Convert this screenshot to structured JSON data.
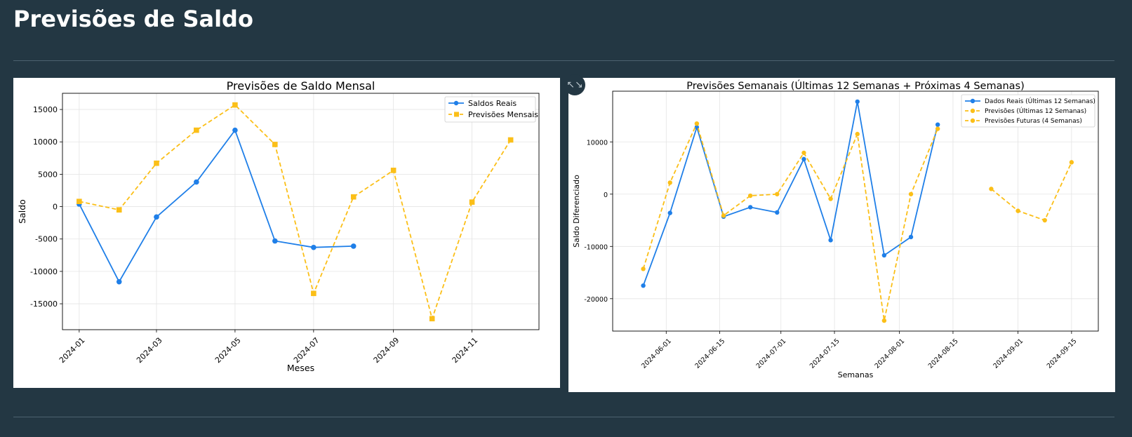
{
  "page": {
    "title": "Previsões de Saldo",
    "expand_icon": "↖↘"
  },
  "colors": {
    "background": "#233743",
    "real": "#1f7fe8",
    "forecast": "#fbbf18",
    "grid": "#e4e4e4"
  },
  "chart_data": [
    {
      "type": "line",
      "title": "Previsões de Saldo Mensal",
      "xlabel": "Meses",
      "ylabel": "Saldo",
      "x_tick_labels": [
        "2024-01",
        "2024-03",
        "2024-05",
        "2024-07",
        "2024-09",
        "2024-11"
      ],
      "y_ticks": [
        -15000,
        -10000,
        -5000,
        0,
        5000,
        10000,
        15000
      ],
      "ylim": [
        -19000,
        17500
      ],
      "grid": true,
      "legend_position": "top-right",
      "series": [
        {
          "name": "Saldos Reais",
          "style": "solid",
          "marker": "circle",
          "x": [
            "2024-01",
            "2024-02",
            "2024-03",
            "2024-04",
            "2024-05",
            "2024-06",
            "2024-07",
            "2024-08"
          ],
          "values": [
            400,
            -11600,
            -1600,
            3800,
            11800,
            -5300,
            -6300,
            -6100
          ]
        },
        {
          "name": "Previsões Mensais",
          "style": "dashed",
          "marker": "square",
          "x": [
            "2024-01",
            "2024-02",
            "2024-03",
            "2024-04",
            "2024-05",
            "2024-06",
            "2024-07",
            "2024-08",
            "2024-09",
            "2024-10",
            "2024-11",
            "2024-12"
          ],
          "values": [
            800,
            -500,
            6700,
            11800,
            15700,
            9600,
            -13400,
            1500,
            5600,
            -17300,
            700,
            10300
          ]
        }
      ]
    },
    {
      "type": "line",
      "title": "Previsões Semanais (Últimas 12 Semanas + Próximas 4 Semanas)",
      "xlabel": "Semanas",
      "ylabel": "Saldo Diferenciado",
      "x_tick_labels": [
        "2024-06-01",
        "2024-06-15",
        "2024-07-01",
        "2024-07-15",
        "2024-08-01",
        "2024-08-15",
        "2024-09-01",
        "2024-09-15"
      ],
      "y_ticks": [
        -20000,
        -10000,
        0,
        10000
      ],
      "ylim": [
        -26200,
        19700
      ],
      "grid": true,
      "legend_position": "top-right",
      "series": [
        {
          "name": "Dados Reais (Últimas 12 Semanas)",
          "style": "solid",
          "marker": "circle",
          "x": [
            "2024-05-26",
            "2024-06-02",
            "2024-06-09",
            "2024-06-16",
            "2024-06-23",
            "2024-06-30",
            "2024-07-07",
            "2024-07-14",
            "2024-07-21",
            "2024-07-28",
            "2024-08-04",
            "2024-08-11"
          ],
          "values": [
            -17500,
            -3600,
            12800,
            -4300,
            -2500,
            -3500,
            6700,
            -8800,
            17700,
            -11700,
            -8200,
            13300
          ]
        },
        {
          "name": "Previsões (Últimas 12 Semanas)",
          "style": "dashed",
          "marker": "circle",
          "x": [
            "2024-05-26",
            "2024-06-02",
            "2024-06-09",
            "2024-06-16",
            "2024-06-23",
            "2024-06-30",
            "2024-07-07",
            "2024-07-14",
            "2024-07-21",
            "2024-07-28",
            "2024-08-04",
            "2024-08-11"
          ],
          "values": [
            -14300,
            2200,
            13500,
            -4100,
            -300,
            0,
            7900,
            -900,
            11500,
            -24200,
            0,
            12500
          ]
        },
        {
          "name": "Previsões Futuras (4 Semanas)",
          "style": "dashed",
          "marker": "circle",
          "x": [
            "2024-08-25",
            "2024-09-01",
            "2024-09-08",
            "2024-09-15"
          ],
          "values": [
            1000,
            -3200,
            -5000,
            6100
          ]
        }
      ]
    }
  ]
}
